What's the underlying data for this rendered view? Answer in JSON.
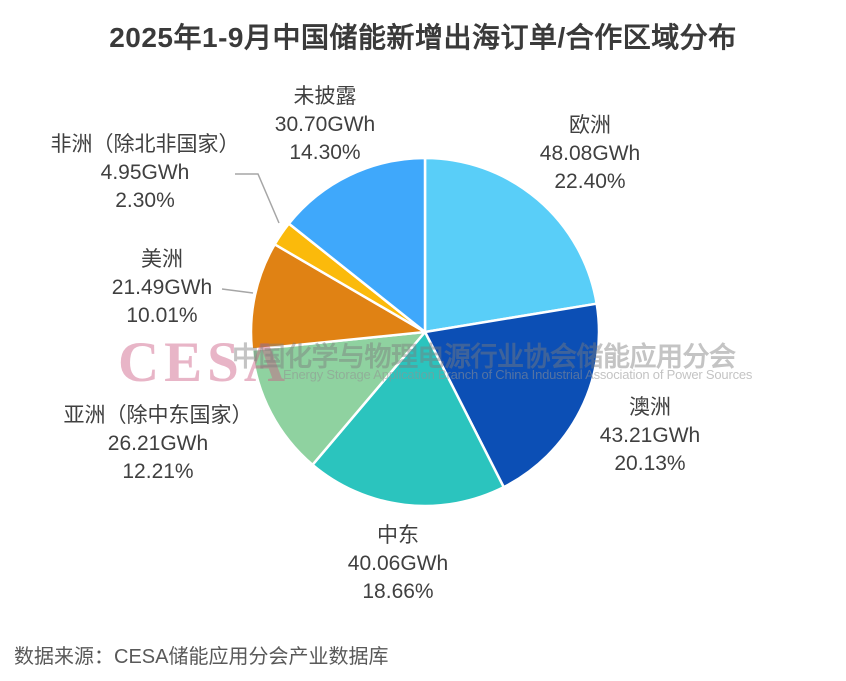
{
  "title": "2025年1-9月中国储能新增出海订单/合作区域分布",
  "source": "数据来源：CESA储能应用分会产业数据库",
  "watermark": {
    "logo": "CESA",
    "org_cn": "中国化学与物理电源行业协会储能应用分会",
    "org_en": "Energy Storage Application Branch of China Industrial Association of Power Sources"
  },
  "chart_data": {
    "type": "pie",
    "title": "2025年1-9月中国储能新增出海订单/合作区域分布",
    "unit": "GWh",
    "direction": "clockwise",
    "start_angle_deg_from_top": 0,
    "legend_position": "none",
    "series": [
      {
        "name": "欧洲",
        "gwh": 48.08,
        "pct": 22.4,
        "gwh_label": "48.08GWh",
        "pct_label": "22.40%",
        "color": "#59CEF8"
      },
      {
        "name": "澳洲",
        "gwh": 43.21,
        "pct": 20.13,
        "gwh_label": "43.21GWh",
        "pct_label": "20.13%",
        "color": "#0C4FB5"
      },
      {
        "name": "中东",
        "gwh": 40.06,
        "pct": 18.66,
        "gwh_label": "40.06GWh",
        "pct_label": "18.66%",
        "color": "#2BC4BE"
      },
      {
        "name": "亚洲（除中东国家）",
        "gwh": 26.21,
        "pct": 12.21,
        "gwh_label": "26.21GWh",
        "pct_label": "12.21%",
        "color": "#8FD2A0"
      },
      {
        "name": "美洲",
        "gwh": 21.49,
        "pct": 10.01,
        "gwh_label": "21.49GWh",
        "pct_label": "10.01%",
        "color": "#E08214"
      },
      {
        "name": "非洲（除北非国家）",
        "gwh": 4.95,
        "pct": 2.3,
        "gwh_label": "4.95GWh",
        "pct_label": "2.30%",
        "color": "#FBBA0B"
      },
      {
        "name": "未披露",
        "gwh": 30.7,
        "pct": 14.3,
        "gwh_label": "30.70GWh",
        "pct_label": "14.30%",
        "color": "#3FA8FB"
      }
    ]
  }
}
